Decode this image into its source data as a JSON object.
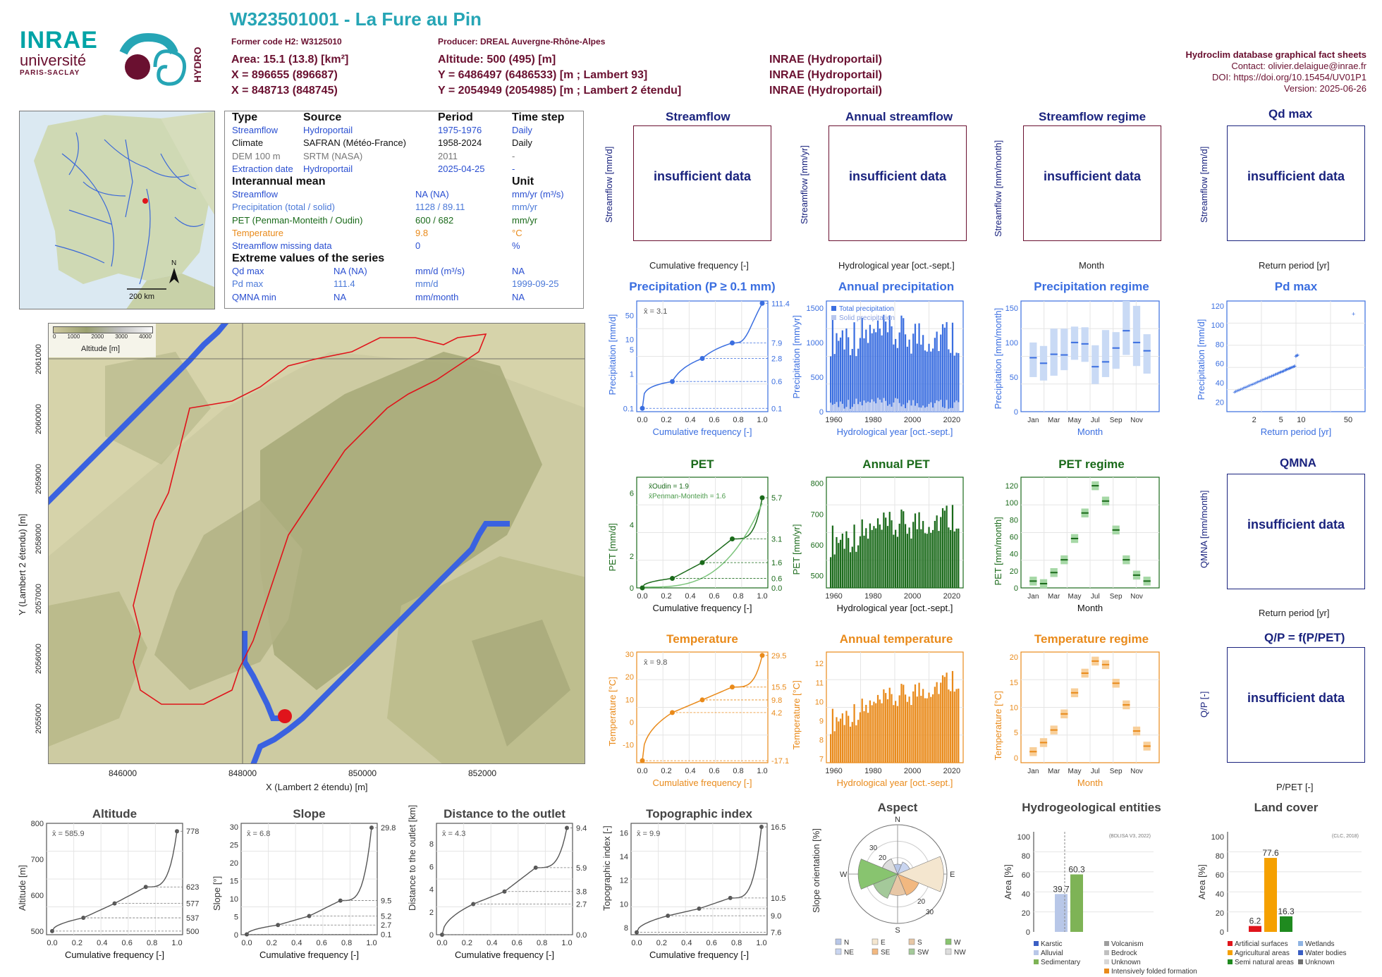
{
  "header": {
    "code_title": "W323501001 - La Fure au Pin",
    "former_code": "Former code H2: W3125010",
    "producer": "Producer: DREAL Auvergne-Rhône-Alpes",
    "area": "Area: 15.1 (13.8) [km²]",
    "altitude": "Altitude: 500 (495) [m]",
    "x93": "X = 896655 (896687)",
    "y93": "Y = 6486497 (6486533) [m ; Lambert 93]",
    "x2": "X = 848713 (848745)",
    "y2": "Y = 2054949 (2054985) [m ; Lambert 2 étendu]",
    "src1": "INRAE (Hydroportail)",
    "src2": "INRAE (Hydroportail)",
    "src3": "INRAE (Hydroportail)"
  },
  "logos": {
    "inrae": "INRAE",
    "univ": "université",
    "paris": "PARIS-SACLAY",
    "hydro": "HYDRO"
  },
  "credits": {
    "title": "Hydroclim database graphical fact sheets",
    "contact": "Contact: olivier.delaigue@inrae.fr",
    "doi": "DOI: https://doi.org/10.15454/UV01P1",
    "version": "Version: 2025-06-26"
  },
  "info": {
    "h_type": "Type",
    "h_source": "Source",
    "h_period": "Period",
    "h_step": "Time step",
    "rows": [
      [
        "Streamflow",
        "Hydroportail",
        "1975-1976",
        "Daily"
      ],
      [
        "Climate",
        "SAFRAN (Météo-France)",
        "1958-2024",
        "Daily"
      ],
      [
        "DEM 100 m",
        "SRTM (NASA)",
        "2011",
        "-"
      ],
      [
        "Extraction date",
        "Hydroportail",
        "2025-04-25",
        "-"
      ]
    ],
    "h_mean": "Interannual mean",
    "h_unit": "Unit",
    "mean_rows": [
      [
        "Streamflow",
        "NA (NA)",
        "mm/yr (m³/s)"
      ],
      [
        "Precipitation (total / solid)",
        "1128 / 89.11",
        "mm/yr"
      ],
      [
        "PET (Penman-Monteith / Oudin)",
        "600 / 682",
        "mm/yr"
      ],
      [
        "Temperature",
        "9.8",
        "°C"
      ],
      [
        "Streamflow missing data",
        "0",
        "%"
      ]
    ],
    "h_extreme": "Extreme values of the series",
    "ext_rows": [
      [
        "Qd max",
        "NA (NA)",
        "mm/d (m³/s)",
        "NA"
      ],
      [
        "Pd max",
        "111.4",
        "mm/d",
        "1999-09-25"
      ],
      [
        "QMNA min",
        "NA",
        "mm/month",
        "NA"
      ]
    ]
  },
  "minimap": {
    "north": "N",
    "scale": "200 km"
  },
  "catchment_map": {
    "legend_title": "Altitude [m]",
    "legend_ticks": [
      "0",
      "1000",
      "2000",
      "3000",
      "4000"
    ],
    "xlabel": "X (Lambert 2 étendu) [m]",
    "ylabel": "Y (Lambert 2 étendu) [m]",
    "xticks": [
      "846000",
      "848000",
      "850000",
      "852000"
    ],
    "yticks": [
      "2055000",
      "2056000",
      "2057000",
      "2058000",
      "2059000",
      "2060000",
      "2061000"
    ]
  },
  "panels": {
    "streamflow": {
      "title": "Streamflow",
      "ylabel": "Streamflow [mm/d]",
      "xlabel": "Cumulative frequency [-]",
      "msg": "insufficient data"
    },
    "annual_streamflow": {
      "title": "Annual streamflow",
      "ylabel": "Streamflow [mm/yr]",
      "xlabel": "Hydrological year [oct.-sept.]",
      "msg": "insufficient data"
    },
    "streamflow_regime": {
      "title": "Streamflow regime",
      "ylabel": "Streamflow [mm/month]",
      "xlabel": "Month",
      "msg": "insufficient data"
    },
    "qd_max": {
      "title": "Qd max",
      "ylabel": "Streamflow [mm/d]",
      "xlabel": "Return period [yr]",
      "msg": "insufficient data"
    },
    "precip": {
      "title": "Precipitation (P ≥ 0.1 mm)",
      "ylabel": "Precipitation [mm/d]",
      "xlabel": "Cumulative frequency [-]",
      "mean": "x̄ = 3.1"
    },
    "annual_precip": {
      "title": "Annual precipitation",
      "ylabel": "Precipitation [mm/yr]",
      "xlabel": "Hydrological year [oct.-sept.]",
      "leg1": "Total precipitation",
      "leg2": "Solid precipitation"
    },
    "precip_regime": {
      "title": "Precipitation regime",
      "ylabel": "Precipitation [mm/month]",
      "xlabel": "Month"
    },
    "pd_max": {
      "title": "Pd max",
      "ylabel": "Precipitation [mm/d]",
      "xlabel": "Return period [yr]"
    },
    "pet": {
      "title": "PET",
      "ylabel": "PET [mm/d]",
      "xlabel": "Cumulative frequency [-]",
      "leg1": "x̄Oudin = 1.9",
      "leg2": "x̄Penman-Monteith = 1.6"
    },
    "annual_pet": {
      "title": "Annual PET",
      "ylabel": "PET [mm/yr]",
      "xlabel": "Hydrological year [oct.-sept.]"
    },
    "pet_regime": {
      "title": "PET regime",
      "ylabel": "PET [mm/month]",
      "xlabel": "Month"
    },
    "qmna": {
      "title": "QMNA",
      "ylabel": "QMNA [mm/month]",
      "xlabel": "Return period [yr]",
      "msg": "insufficient data"
    },
    "temp": {
      "title": "Temperature",
      "ylabel": "Temperature [°C]",
      "xlabel": "Cumulative frequency [-]",
      "mean": "x̄ = 9.8"
    },
    "annual_temp": {
      "title": "Annual temperature",
      "ylabel": "Temperature [°C]",
      "xlabel": "Hydrological year [oct.-sept.]"
    },
    "temp_regime": {
      "title": "Temperature regime",
      "ylabel": "Temperature [°C]",
      "xlabel": "Month"
    },
    "qp": {
      "title": "Q/P = f(P/PET)",
      "ylabel": "Q/P [-]",
      "xlabel": "P/PET [-]",
      "msg": "insufficient data"
    },
    "altitude": {
      "title": "Altitude",
      "ylabel": "Altitude [m]",
      "xlabel": "Cumulative frequency [-]",
      "mean": "x̄ = 585.9"
    },
    "slope": {
      "title": "Slope",
      "ylabel": "Slope [°]",
      "xlabel": "Cumulative frequency [-]",
      "mean": "x̄ = 6.8"
    },
    "distance": {
      "title": "Distance to the outlet",
      "ylabel": "Distance to the outlet [km]",
      "xlabel": "Cumulative frequency [-]",
      "mean": "x̄ = 4.3"
    },
    "topo": {
      "title": "Topographic index",
      "ylabel": "Topographic index [-]",
      "xlabel": "Cumulative frequency [-]",
      "mean": "x̄ = 9.9"
    },
    "aspect": {
      "title": "Aspect",
      "ylabel": "Slope orientation [%]"
    },
    "hydrogeo": {
      "title": "Hydrogeological entities",
      "ylabel": "Area [%]",
      "source": "(BDLISA V3, 2022)"
    },
    "landcover": {
      "title": "Land cover",
      "ylabel": "Area [%]",
      "source": "(CLC, 2018)"
    }
  },
  "chart_data": [
    {
      "id": "precip",
      "type": "line",
      "x": [
        0,
        0.25,
        0.5,
        0.75,
        1.0
      ],
      "y": [
        0.1,
        0.6,
        2.8,
        7.9,
        111.4
      ],
      "right_labels": [
        "111.4",
        "7.9",
        "2.8",
        "0.6",
        "0.1"
      ],
      "yticks": [
        "0.1",
        "1",
        "5",
        "10",
        "50"
      ],
      "xticks": [
        "0.0",
        "0.2",
        "0.4",
        "0.6",
        "0.8",
        "1.0"
      ],
      "yscale": "log"
    },
    {
      "id": "annual_precip",
      "type": "bar",
      "xlim": [
        1958,
        2024
      ],
      "ylim": [
        0,
        1600
      ],
      "yticks": [
        "0",
        "500",
        "1000",
        "1500"
      ],
      "xticks": [
        "1960",
        "1980",
        "2000",
        "2020"
      ]
    },
    {
      "id": "precip_regime",
      "type": "box",
      "categories": [
        "Jan",
        "Feb",
        "Mar",
        "Apr",
        "May",
        "Jun",
        "Jul",
        "Aug",
        "Sep",
        "Oct",
        "Nov",
        "Dec"
      ],
      "median": [
        78,
        70,
        83,
        82,
        100,
        98,
        65,
        72,
        92,
        117,
        100,
        88
      ],
      "low": [
        50,
        45,
        52,
        60,
        75,
        72,
        40,
        50,
        62,
        82,
        66,
        55
      ],
      "high": [
        100,
        95,
        120,
        120,
        123,
        122,
        96,
        118,
        115,
        160,
        153,
        112
      ],
      "ylim": [
        0,
        160
      ],
      "yticks": [
        "0",
        "50",
        "100",
        "150"
      ],
      "xticks": [
        "Jan",
        "Mar",
        "May",
        "Jul",
        "Sep",
        "Nov"
      ]
    },
    {
      "id": "pd_max",
      "type": "scatter",
      "xscale": "log",
      "xticks": [
        "2",
        "5",
        "10",
        "50"
      ],
      "yticks": [
        "20",
        "40",
        "60",
        "80",
        "100",
        "120"
      ],
      "ylim": [
        10,
        125
      ]
    },
    {
      "id": "pet",
      "type": "line",
      "x": [
        0,
        0.25,
        0.5,
        0.75,
        1.0
      ],
      "y": [
        0.0,
        0.6,
        1.6,
        3.1,
        5.7
      ],
      "right_labels": [
        "5.7",
        "3.1",
        "1.6",
        "0.6",
        "0.0"
      ],
      "yticks": [
        "0",
        "2",
        "4",
        "6"
      ],
      "xticks": [
        "0.0",
        "0.2",
        "0.4",
        "0.6",
        "0.8",
        "1.0"
      ],
      "ylim": [
        0,
        7
      ]
    },
    {
      "id": "annual_pet",
      "type": "bar",
      "xlim": [
        1958,
        2024
      ],
      "ylim": [
        460,
        820
      ],
      "yticks": [
        "500",
        "600",
        "700",
        "800"
      ],
      "xticks": [
        "1960",
        "1980",
        "2000",
        "2020"
      ]
    },
    {
      "id": "pet_regime",
      "type": "box",
      "categories": [
        "Jan",
        "Feb",
        "Mar",
        "Apr",
        "May",
        "Jun",
        "Jul",
        "Aug",
        "Sep",
        "Oct",
        "Nov",
        "Dec"
      ],
      "median": [
        8,
        5,
        18,
        33,
        58,
        88,
        120,
        102,
        68,
        33,
        15,
        8
      ],
      "ylim": [
        0,
        130
      ],
      "yticks": [
        "0",
        "20",
        "40",
        "60",
        "80",
        "100",
        "120"
      ],
      "xticks": [
        "Jan",
        "Mar",
        "May",
        "Jul",
        "Sep",
        "Nov"
      ]
    },
    {
      "id": "temp",
      "type": "line",
      "x": [
        0,
        0.25,
        0.5,
        0.75,
        1.0
      ],
      "y": [
        -17.1,
        4.2,
        9.8,
        15.5,
        29.5
      ],
      "right_labels": [
        "29.5",
        "15.5",
        "9.8",
        "4.2",
        "-17.1"
      ],
      "yticks": [
        "-10",
        "0",
        "10",
        "20",
        "30"
      ],
      "xticks": [
        "0.0",
        "0.2",
        "0.4",
        "0.6",
        "0.8",
        "1.0"
      ],
      "ylim": [
        -18,
        31
      ]
    },
    {
      "id": "annual_temp",
      "type": "bar",
      "xlim": [
        1958,
        2024
      ],
      "ylim": [
        6.8,
        12.6
      ],
      "yticks": [
        "7",
        "8",
        "9",
        "10",
        "11",
        "12"
      ],
      "xticks": [
        "1960",
        "1980",
        "2000",
        "2020"
      ]
    },
    {
      "id": "temp_regime",
      "type": "box",
      "categories": [
        "Jan",
        "Feb",
        "Mar",
        "Apr",
        "May",
        "Jun",
        "Jul",
        "Aug",
        "Sep",
        "Oct",
        "Nov",
        "Dec"
      ],
      "median": [
        1.2,
        3,
        5.5,
        8.7,
        12.9,
        16.8,
        19.2,
        18.5,
        14.8,
        10.5,
        5.3,
        2.3
      ],
      "ylim": [
        -1,
        21
      ],
      "yticks": [
        "0",
        "5",
        "10",
        "15",
        "20"
      ],
      "xticks": [
        "Jan",
        "Mar",
        "May",
        "Jul",
        "Sep",
        "Nov"
      ]
    },
    {
      "id": "altitude",
      "type": "line",
      "x": [
        0,
        0.25,
        0.5,
        0.75,
        1.0
      ],
      "y": [
        500,
        537,
        577,
        623,
        778
      ],
      "right_labels": [
        "778",
        "623",
        "577",
        "537",
        "500"
      ],
      "yticks": [
        "500",
        "600",
        "700",
        "800"
      ],
      "ylim": [
        490,
        800
      ],
      "xticks": [
        "0.0",
        "0.2",
        "0.4",
        "0.6",
        "0.8",
        "1.0"
      ]
    },
    {
      "id": "slope",
      "type": "line",
      "x": [
        0,
        0.25,
        0.5,
        0.75,
        1.0
      ],
      "y": [
        0.1,
        2.7,
        5.2,
        9.5,
        29.8
      ],
      "right_labels": [
        "29.8",
        "9.5",
        "5.2",
        "2.7",
        "0.1"
      ],
      "yticks": [
        "0",
        "5",
        "10",
        "15",
        "20",
        "25",
        "30"
      ],
      "ylim": [
        0,
        31
      ],
      "xticks": [
        "0.0",
        "0.2",
        "0.4",
        "0.6",
        "0.8",
        "1.0"
      ]
    },
    {
      "id": "distance",
      "type": "line",
      "x": [
        0,
        0.25,
        0.5,
        0.75,
        1.0
      ],
      "y": [
        0.0,
        2.7,
        3.8,
        5.9,
        9.4
      ],
      "right_labels": [
        "9.4",
        "5.9",
        "3.8",
        "2.7",
        "0.0"
      ],
      "yticks": [
        "0",
        "2",
        "4",
        "6",
        "8"
      ],
      "ylim": [
        0,
        9.8
      ],
      "xticks": [
        "0.0",
        "0.2",
        "0.4",
        "0.6",
        "0.8",
        "1.0"
      ]
    },
    {
      "id": "topo",
      "type": "line",
      "x": [
        0,
        0.25,
        0.5,
        0.75,
        1.0
      ],
      "y": [
        7.6,
        9.0,
        9.6,
        10.5,
        16.5
      ],
      "right_labels": [
        "16.5",
        "10.5",
        "9.0",
        "7.6"
      ],
      "yticks": [
        "8",
        "10",
        "12",
        "14",
        "16"
      ],
      "ylim": [
        7.4,
        16.8
      ],
      "xticks": [
        "0.0",
        "0.2",
        "0.4",
        "0.6",
        "0.8",
        "1.0"
      ]
    },
    {
      "id": "aspect",
      "type": "rose",
      "categories": [
        "N",
        "NE",
        "E",
        "SE",
        "S",
        "SW",
        "W",
        "NW"
      ],
      "values": [
        6,
        8,
        28,
        14,
        13,
        16,
        24,
        10
      ],
      "rings": [
        "10",
        "20",
        "30"
      ]
    },
    {
      "id": "hydrogeo",
      "type": "bar",
      "categories": [
        "Karstic",
        "Alluvial",
        "Sedimentary",
        "Volcanism",
        "Bedrock",
        "Unknown",
        "Intensively folded formation"
      ],
      "values": [
        0,
        39.7,
        60.3,
        0,
        0,
        0,
        0
      ],
      "labels": [
        "39.7",
        "60.3"
      ],
      "colors": [
        "#3b5fc4",
        "#b8c7e8",
        "#7eb356",
        "#9e9e9e",
        "#c0c0c0",
        "#d7d7d7",
        "#e98a1a"
      ],
      "yticks": [
        "0",
        "20",
        "40",
        "60",
        "80",
        "100"
      ],
      "ylim": [
        0,
        105
      ]
    },
    {
      "id": "landcover",
      "type": "bar",
      "categories": [
        "Artificial surfaces",
        "Agricultural areas",
        "Semi natural areas",
        "Wetlands",
        "Water bodies",
        "Unknown"
      ],
      "values": [
        6.2,
        77.6,
        16.3,
        0,
        0,
        0
      ],
      "labels": [
        "6.2",
        "77.6",
        "16.3"
      ],
      "colors": [
        "#e0141b",
        "#f5a000",
        "#1f8a1f",
        "#8fb4e3",
        "#3b5fc4",
        "#707070"
      ],
      "yticks": [
        "0",
        "20",
        "40",
        "60",
        "80",
        "100"
      ],
      "ylim": [
        0,
        105
      ]
    }
  ]
}
